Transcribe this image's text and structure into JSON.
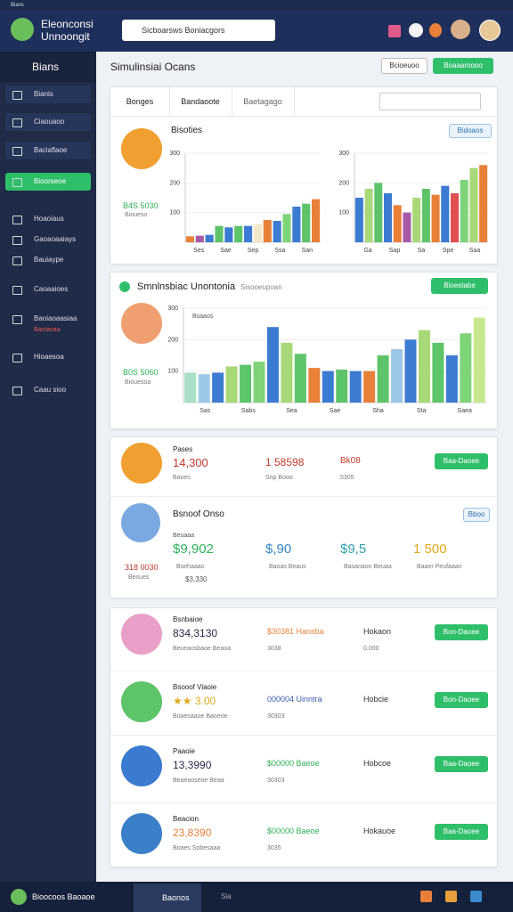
{
  "window": {
    "title": "Bianc"
  },
  "header": {
    "brand": "Eleonconsi",
    "sub": "Unnoongit",
    "search": "Sicboarsws Boniacgors"
  },
  "sidebar": {
    "title": "Bians",
    "menu": [
      {
        "label": "Bianis"
      },
      {
        "label": "Ciaouaoo"
      },
      {
        "label": "Baciaflaoe"
      },
      {
        "label": "Bioorseoe",
        "active": true
      },
      {
        "label": "Hoaoiaus"
      },
      {
        "label": "Gaoaoaaiays"
      },
      {
        "label": "Bauiaype"
      },
      {
        "label": "Caoaaioes"
      },
      {
        "label": "Baoiaoaasiaa",
        "note": "Baoiaoaa"
      },
      {
        "label": "Hioaesoa"
      },
      {
        "label": "Caau sioo"
      }
    ]
  },
  "page": {
    "title": "Simulinsiai Ocans",
    "buttons": [
      "Bcioeuoo",
      "Boaaaroooo"
    ]
  },
  "card1": {
    "tabs": [
      "Bonges",
      "Bandaoote",
      "Baetagago"
    ],
    "title": "Bisoties",
    "button": "Bidoaos",
    "stat": "B4S 5030",
    "stat_label": "Bioueso",
    "charts": [
      {
        "ylim": [
          0,
          300
        ],
        "yticks": [
          100,
          200,
          300
        ],
        "x_labels": [
          "Ses",
          "Sae",
          "Sep",
          "Ssa",
          "San"
        ],
        "values": [
          20,
          22,
          25,
          55,
          50,
          55,
          55,
          60,
          75,
          72,
          95,
          120,
          130,
          145
        ],
        "colors": [
          "#e8803a",
          "#a65aa8",
          "#3b7bd1",
          "#5ec46a",
          "#3b7bd1",
          "#5ec46a",
          "#3b7bd1",
          "#f3e8c8",
          "#e8803a",
          "#3b7bd1",
          "#7fd47a",
          "#3b7bd1",
          "#5ec46a",
          "#e8803a"
        ]
      },
      {
        "ylim": [
          0,
          300
        ],
        "yticks": [
          100,
          200,
          300
        ],
        "x_labels": [
          "Ga",
          "Sap",
          "Sa",
          "Spe",
          "Saa"
        ],
        "values": [
          150,
          180,
          200,
          165,
          125,
          100,
          150,
          180,
          160,
          190,
          165,
          210,
          250,
          260
        ],
        "colors": [
          "#3b7bd1",
          "#a8d878",
          "#5ec46a",
          "#3b7bd1",
          "#e8803a",
          "#a65aa8",
          "#a8d878",
          "#5ec46a",
          "#e8803a",
          "#3b7bd1",
          "#e05050",
          "#7fd47a",
          "#a8d878",
          "#e8803a"
        ]
      }
    ]
  },
  "card2": {
    "title": "Smnlnsbiac Unontonia",
    "subtitle": "Sisooeupoan",
    "button": "Bloestabe",
    "legend": "Bsaaos",
    "stat": "B0S 5060",
    "stat_label": "Biouesoa",
    "chart": {
      "ylim": [
        0,
        300
      ],
      "yticks": [
        100,
        200,
        300
      ],
      "x_labels": [
        "Sas",
        "Sabs",
        "Sea",
        "Sae",
        "Sha",
        "Sta",
        "Saea"
      ],
      "values": [
        95,
        90,
        95,
        115,
        120,
        130,
        240,
        190,
        155,
        110,
        100,
        105,
        100,
        100,
        150,
        170,
        200,
        230,
        190,
        150,
        220,
        270
      ],
      "colors": [
        "#a8e0c8",
        "#9bc8e8",
        "#3b7bd1",
        "#a8d878",
        "#5ec46a",
        "#7fd47a",
        "#3b7bd1",
        "#a8d878",
        "#5ec46a",
        "#e8803a",
        "#3b7bd1",
        "#5ec46a",
        "#3b7bd1",
        "#e8803a",
        "#5ec46a",
        "#9bc8e8",
        "#3b7bd1",
        "#a8d878",
        "#5ec46a",
        "#3b7bd1",
        "#7fd47a",
        "#c8e890"
      ]
    }
  },
  "card3": {
    "row1": {
      "title": "Pases",
      "value": "14,300",
      "value_sub": "Baoes",
      "mid": "1 58598",
      "mid_sub": "Snp Booo",
      "right": "Bk08",
      "right_sub": "5305",
      "button": "Baa-Daoee"
    },
    "row2": {
      "title": "Bsnoof Onso",
      "label": "Beuaaa",
      "button": "Bboo",
      "left": "318 0030",
      "left_sub": "Besues",
      "left_extra": "$3,330",
      "stats": [
        {
          "value": "$9,902",
          "sub": "Bsehaaao",
          "color": "#2fae5a"
        },
        {
          "value": "$,90",
          "sub": "Baoas Beaus",
          "color": "#2f86c8"
        },
        {
          "value": "$9,5",
          "sub": "Basanaon Beuaa",
          "color": "#2fa0b0"
        },
        {
          "value": "1 500",
          "sub": "Baaer Peufaaan",
          "color": "#e0a81a"
        }
      ]
    }
  },
  "list": [
    {
      "title": "Bsnbaioe",
      "value": "834,3130",
      "value_sub": "Beceaosbaoe Beaoa",
      "mid": "$30381 Hansba",
      "mid_sub": "3038",
      "col": "Hokaon",
      "col_sub": "0.000",
      "button": "Bon-Daoee",
      "vcolor": "#2a2a4a",
      "mcolor": "#e8803a"
    },
    {
      "title": "Bsooof Viaoie",
      "value": "★★ 3.00",
      "value_sub": "Boaesaaoe Baoeoe",
      "mid": "000004 Uinntra",
      "mid_sub": "30303",
      "col": "Hobcie",
      "col_sub": "",
      "button": "Bon-Daoee",
      "vcolor": "#e0a81a",
      "mcolor": "#3a5bb0"
    },
    {
      "title": "Paaoie",
      "value": "13,3990",
      "value_sub": "Beaeaoseoe Beaa",
      "mid": "$00000 Baeoe",
      "mid_sub": "30303",
      "col": "Hobcoe",
      "col_sub": "",
      "button": "Baa-Daoee",
      "vcolor": "#2a2a4a",
      "mcolor": "#2fae5a"
    },
    {
      "title": "Beacion",
      "value": "23,8390",
      "value_sub": "Boaes  Sobesaaa",
      "mid": "$00000 Baeoe",
      "mid_sub": "3035",
      "col": "Hokauoe",
      "col_sub": "",
      "button": "Baa-Daoee",
      "vcolor": "#e8803a",
      "mcolor": "#2fae5a"
    }
  ],
  "taskbar": {
    "user": "Bioocoos Baoaoe",
    "app": "Baonos",
    "item": "Sia"
  }
}
